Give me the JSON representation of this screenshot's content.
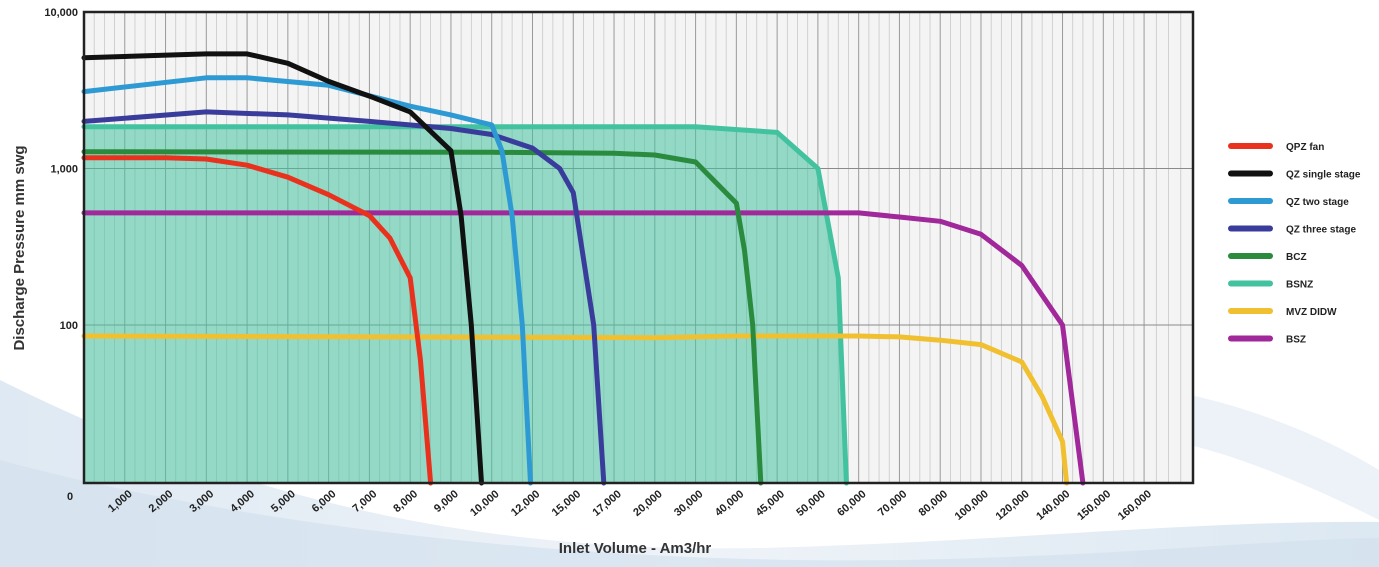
{
  "chart_data": {
    "type": "line",
    "xlabel": "Inlet Volume - Am3/hr",
    "ylabel": "Discharge Pressure mm swg",
    "x_scale": "categorical",
    "y_scale": "log",
    "x_origin_label": "0",
    "categories": [
      "1,000",
      "2,000",
      "3,000",
      "4,000",
      "5,000",
      "6,000",
      "7,000",
      "8,000",
      "9,000",
      "10,000",
      "12,000",
      "15,000",
      "17,000",
      "20,000",
      "30,000",
      "40,000",
      "45,000",
      "50,000",
      "60,000",
      "70,000",
      "80,000",
      "100,000",
      "120,000",
      "140,000",
      "150,000",
      "160,000"
    ],
    "y_ticks": [
      {
        "value": 10000,
        "label": "10,000"
      },
      {
        "value": 1000,
        "label": "1,000"
      },
      {
        "value": 100,
        "label": "100"
      }
    ],
    "ylim": [
      10000
    ],
    "grid": true,
    "legend_position": "right",
    "series": [
      {
        "name": "QPZ fan",
        "color": "#e8321e",
        "points": [
          [
            "0",
            1170
          ],
          [
            "2,000",
            1170
          ],
          [
            "3,000",
            1150
          ],
          [
            "4,000",
            1050
          ],
          [
            "5,000",
            880
          ],
          [
            "6,000",
            680
          ],
          [
            "7,000",
            500
          ],
          [
            "7,500",
            360
          ],
          [
            "8,000",
            200
          ],
          [
            "8,250",
            60
          ],
          [
            "8,500",
            8
          ]
        ]
      },
      {
        "name": "QZ single stage",
        "color": "#111111",
        "points": [
          [
            "0",
            5100
          ],
          [
            "3,000",
            5400
          ],
          [
            "4,000",
            5400
          ],
          [
            "5,000",
            4700
          ],
          [
            "6,000",
            3600
          ],
          [
            "7,000",
            2900
          ],
          [
            "8,000",
            2300
          ],
          [
            "9,000",
            1300
          ],
          [
            "9,250",
            500
          ],
          [
            "9,500",
            100
          ],
          [
            "9,750",
            8
          ]
        ]
      },
      {
        "name": "QZ two stage",
        "color": "#2e9ad4",
        "points": [
          [
            "0",
            3100
          ],
          [
            "3,000",
            3800
          ],
          [
            "4,000",
            3800
          ],
          [
            "6,000",
            3400
          ],
          [
            "8,000",
            2500
          ],
          [
            "9,000",
            2200
          ],
          [
            "10,000",
            1900
          ],
          [
            "10,500",
            1300
          ],
          [
            "11,000",
            500
          ],
          [
            "11,500",
            100
          ],
          [
            "11,900",
            8
          ]
        ]
      },
      {
        "name": "QZ three stage",
        "color": "#3a3c9c",
        "points": [
          [
            "0",
            2000
          ],
          [
            "3,000",
            2300
          ],
          [
            "5,000",
            2200
          ],
          [
            "7,000",
            2000
          ],
          [
            "9,000",
            1800
          ],
          [
            "10,000",
            1650
          ],
          [
            "12,000",
            1350
          ],
          [
            "14,000",
            1000
          ],
          [
            "15,000",
            700
          ],
          [
            "16,000",
            100
          ],
          [
            "16,500",
            8
          ]
        ]
      },
      {
        "name": "BCZ",
        "color": "#2a8a3e",
        "points": [
          [
            "0",
            1280
          ],
          [
            "10,000",
            1270
          ],
          [
            "17,000",
            1250
          ],
          [
            "20,000",
            1220
          ],
          [
            "30,000",
            1100
          ],
          [
            "40,000",
            600
          ],
          [
            "41,000",
            300
          ],
          [
            "42,000",
            100
          ],
          [
            "43,000",
            8
          ]
        ]
      },
      {
        "name": "BSNZ",
        "color": "#43c2a0",
        "fill": true,
        "points": [
          [
            "0",
            1850
          ],
          [
            "10,000",
            1850
          ],
          [
            "30,000",
            1850
          ],
          [
            "45,000",
            1700
          ],
          [
            "50,000",
            1000
          ],
          [
            "55,000",
            200
          ],
          [
            "57,000",
            8
          ]
        ]
      },
      {
        "name": "MVZ DIDW",
        "color": "#f0c030",
        "points": [
          [
            "0",
            85
          ],
          [
            "20,000",
            83
          ],
          [
            "40,000",
            85
          ],
          [
            "60,000",
            85
          ],
          [
            "70,000",
            84
          ],
          [
            "80,000",
            80
          ],
          [
            "100,000",
            75
          ],
          [
            "120,000",
            58
          ],
          [
            "130,000",
            35
          ],
          [
            "140,000",
            18
          ],
          [
            "141,000",
            8
          ]
        ]
      },
      {
        "name": "BSZ",
        "color": "#a0289a",
        "points": [
          [
            "0",
            520
          ],
          [
            "20,000",
            520
          ],
          [
            "60,000",
            520
          ],
          [
            "70,000",
            490
          ],
          [
            "80,000",
            460
          ],
          [
            "100,000",
            380
          ],
          [
            "120,000",
            240
          ],
          [
            "140,000",
            100
          ],
          [
            "145,000",
            8
          ]
        ]
      }
    ]
  }
}
